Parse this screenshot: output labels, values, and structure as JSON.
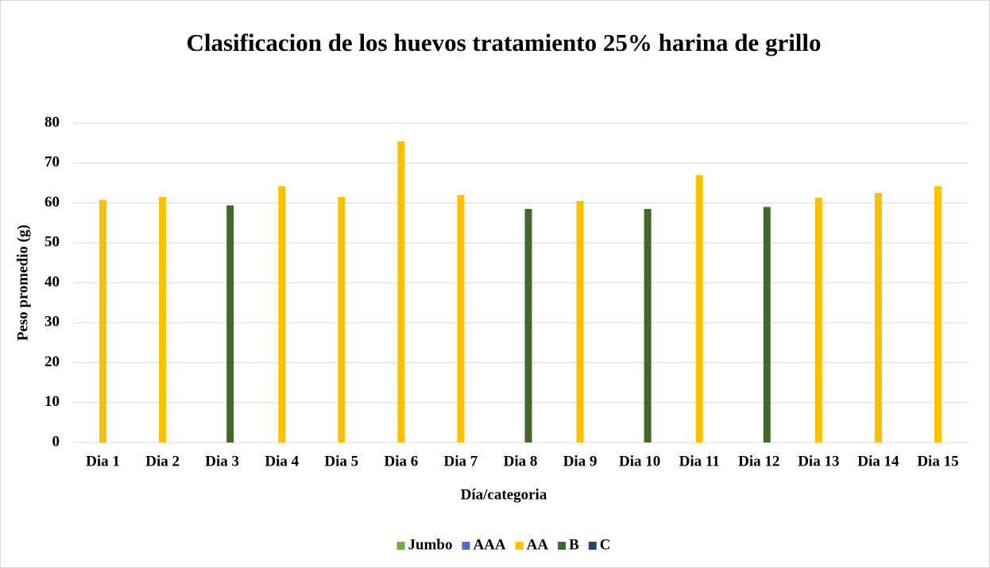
{
  "chart_data": {
    "type": "bar",
    "title": "Clasificacion de los huevos tratamiento 25% harina de grillo",
    "x_label": "Día/categoria",
    "y_label": "Peso promedio (g)",
    "categories": [
      "Dia 1",
      "Dia 2",
      "Dia 3",
      "Dia 4",
      "Dia 5",
      "Dia 6",
      "Dia 7",
      "Dia 8",
      "Dia 9",
      "Dia 10",
      "Dia 11",
      "Dia 12",
      "Dia 13",
      "Dia 14",
      "Dia 15"
    ],
    "series": [
      {
        "name": "Jumbo",
        "color": "#70ad47",
        "values": [
          null,
          null,
          null,
          null,
          null,
          null,
          null,
          null,
          null,
          null,
          null,
          null,
          null,
          null,
          null
        ]
      },
      {
        "name": "AAA",
        "color": "#4472c4",
        "values": [
          null,
          null,
          null,
          null,
          null,
          null,
          null,
          null,
          null,
          null,
          null,
          null,
          null,
          null,
          null
        ]
      },
      {
        "name": "AA",
        "color": "#ffc000",
        "values": [
          60.8,
          61.5,
          null,
          64.2,
          61.5,
          75.4,
          62,
          null,
          60.5,
          null,
          67,
          null,
          61.3,
          62.5,
          64.2
        ]
      },
      {
        "name": "B",
        "color": "#43682b",
        "values": [
          null,
          null,
          59.4,
          null,
          null,
          null,
          null,
          58.5,
          null,
          58.5,
          null,
          59,
          null,
          null,
          null
        ]
      },
      {
        "name": "C",
        "color": "#264478",
        "values": [
          null,
          null,
          null,
          null,
          null,
          null,
          null,
          null,
          null,
          null,
          null,
          null,
          null,
          null,
          null
        ]
      }
    ],
    "ylim": [
      0,
      80
    ],
    "yticks": [
      0,
      10,
      20,
      30,
      40,
      50,
      60,
      70,
      80
    ],
    "grid": true,
    "legend": "bottom"
  }
}
